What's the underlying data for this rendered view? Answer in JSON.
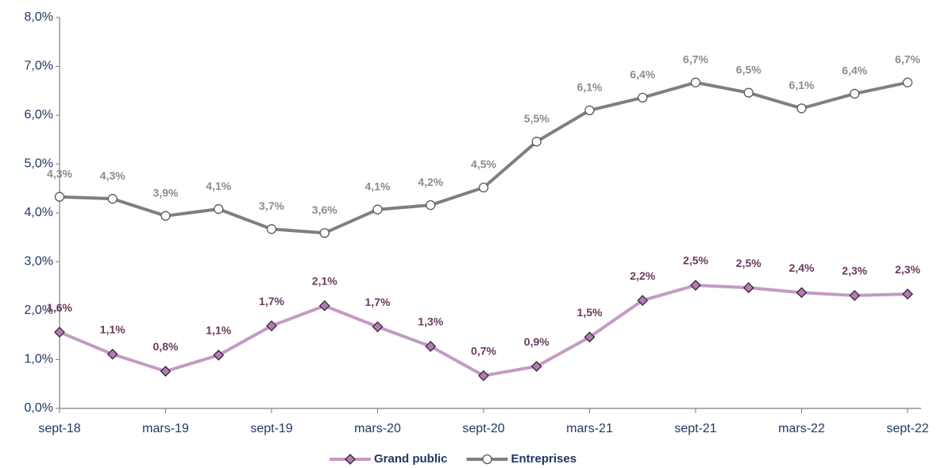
{
  "chart_data": {
    "type": "line",
    "categories": [
      "sept-18",
      null,
      "mars-19",
      null,
      "sept-19",
      null,
      "mars-20",
      null,
      "sept-20",
      null,
      "mars-21",
      null,
      "sept-21",
      null,
      "mars-22",
      null,
      "sept-22"
    ],
    "series": [
      {
        "name": "Grand public",
        "color": "#c39bc4",
        "marker_color": "#b07db3",
        "label_color": "#6b3a5e",
        "values": [
          1.56,
          1.11,
          0.76,
          1.09,
          1.69,
          2.1,
          1.67,
          1.27,
          0.67,
          0.86,
          1.46,
          2.21,
          2.52,
          2.47,
          2.37,
          2.31,
          2.34
        ],
        "value_labels": [
          "1,6%",
          "1,1%",
          "0,8%",
          "1,1%",
          "1,7%",
          "2,1%",
          "1,7%",
          "1,3%",
          "0,7%",
          "0,9%",
          "1,5%",
          "2,2%",
          "2,5%",
          "2,5%",
          "2,4%",
          "2,3%",
          "2,3%"
        ]
      },
      {
        "name": "Entreprises",
        "color": "#7f7f7f",
        "marker_color": "#ffffff",
        "label_color": "#8c8c8c",
        "values": [
          4.33,
          4.29,
          3.94,
          4.08,
          3.67,
          3.59,
          4.07,
          4.16,
          4.52,
          5.46,
          6.1,
          6.36,
          6.67,
          6.46,
          6.14,
          6.44,
          6.67
        ],
        "value_labels": [
          "4,3%",
          "4,3%",
          "3,9%",
          "4,1%",
          "3,7%",
          "3,6%",
          "4,1%",
          "4,2%",
          "4,5%",
          "5,5%",
          "6,1%",
          "6,4%",
          "6,7%",
          "6,5%",
          "6,1%",
          "6,4%",
          "6,7%"
        ]
      }
    ],
    "ylim": [
      0,
      8
    ],
    "yticks": [
      {
        "value": 0,
        "label": "0,0%"
      },
      {
        "value": 1,
        "label": "1,0%"
      },
      {
        "value": 2,
        "label": "2,0%"
      },
      {
        "value": 3,
        "label": "3,0%"
      },
      {
        "value": 4,
        "label": "4,0%"
      },
      {
        "value": 5,
        "label": "5,0%"
      },
      {
        "value": 6,
        "label": "6,0%"
      },
      {
        "value": 7,
        "label": "7,0%"
      },
      {
        "value": 8,
        "label": "8,0%"
      }
    ],
    "grid": false,
    "legend": "bottom"
  }
}
